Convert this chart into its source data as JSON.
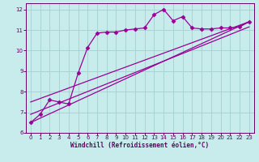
{
  "background_color": "#c8ecec",
  "grid_color": "#aad4d4",
  "line_color": "#990099",
  "marker_color": "#990099",
  "xlabel": "Windchill (Refroidissement éolien,°C)",
  "xlabel_color": "#660066",
  "tick_color": "#660066",
  "axis_color": "#660066",
  "ylim": [
    6,
    12.3
  ],
  "xlim": [
    -0.5,
    23.5
  ],
  "yticks": [
    6,
    7,
    8,
    9,
    10,
    11,
    12
  ],
  "xticks": [
    0,
    1,
    2,
    3,
    4,
    5,
    6,
    7,
    8,
    9,
    10,
    11,
    12,
    13,
    14,
    15,
    16,
    17,
    18,
    19,
    20,
    21,
    22,
    23
  ],
  "series1_x": [
    0,
    1,
    2,
    3,
    4,
    5,
    6,
    7,
    8,
    9,
    10,
    11,
    12,
    13,
    14,
    15,
    16,
    17,
    18,
    19,
    20,
    21,
    22,
    23
  ],
  "series1_y": [
    6.5,
    6.9,
    7.6,
    7.5,
    7.4,
    8.9,
    10.15,
    10.85,
    10.9,
    10.9,
    11.0,
    11.05,
    11.1,
    11.75,
    12.0,
    11.45,
    11.65,
    11.1,
    11.05,
    11.05,
    11.1,
    11.1,
    11.15,
    11.4
  ],
  "line1_x": [
    0,
    23
  ],
  "line1_y": [
    6.5,
    11.4
  ],
  "line2_x": [
    0,
    23
  ],
  "line2_y": [
    6.9,
    11.15
  ],
  "line3_x": [
    0,
    23
  ],
  "line3_y": [
    7.5,
    11.4
  ]
}
